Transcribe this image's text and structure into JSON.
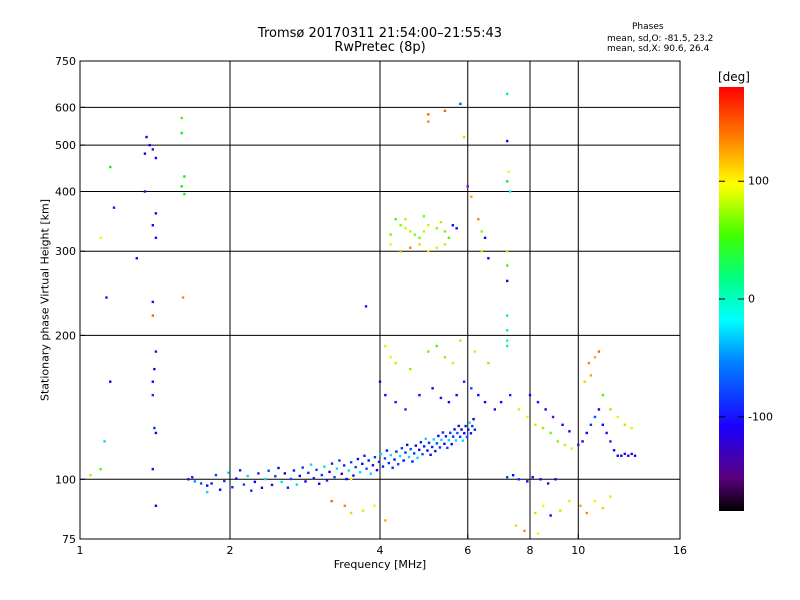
{
  "header": {
    "title_line1": "Tromsø 20170311 21:54:00–21:55:43",
    "title_line2": "RwPretec (8p)",
    "stats_heading": "Phases",
    "stats_o": "mean, sd,O: -81.5, 23.2",
    "stats_x": "mean, sd,X:  90.6, 26.4"
  },
  "colorbar": {
    "unit": "[deg]",
    "ticks": [
      {
        "value": 100,
        "label": "100"
      },
      {
        "value": 0,
        "label": "0"
      },
      {
        "value": -100,
        "label": "-100"
      }
    ],
    "range": [
      -180,
      180
    ]
  },
  "chart_data": {
    "type": "scatter",
    "xlabel": "Frequency [MHz]",
    "ylabel": "Stationary phase Virtual Height [km]",
    "xscale": "log",
    "yscale": "log",
    "xlim": [
      1,
      16
    ],
    "ylim": [
      75,
      750
    ],
    "xticks": [
      1,
      2,
      4,
      6,
      8,
      10,
      16
    ],
    "xtick_labels": [
      "1",
      "2",
      "4",
      "6",
      "8",
      "10",
      "16"
    ],
    "yticks": [
      75,
      100,
      200,
      300,
      400,
      500,
      600,
      750
    ],
    "ytick_labels": [
      "75",
      "100",
      "200",
      "300",
      "400",
      "500",
      "600",
      "750"
    ],
    "grid": true,
    "color_variable": "phase [deg]",
    "points": [
      [
        1.05,
        102,
        90
      ],
      [
        1.1,
        105,
        60
      ],
      [
        1.12,
        120,
        -40
      ],
      [
        1.15,
        160,
        -110
      ],
      [
        1.13,
        240,
        -120
      ],
      [
        1.17,
        370,
        -120
      ],
      [
        1.1,
        320,
        110
      ],
      [
        1.15,
        450,
        40
      ],
      [
        1.38,
        500,
        -110
      ],
      [
        1.4,
        490,
        -120
      ],
      [
        1.42,
        470,
        -100
      ],
      [
        1.35,
        400,
        -120
      ],
      [
        1.42,
        360,
        -110
      ],
      [
        1.4,
        340,
        -110
      ],
      [
        1.42,
        320,
        -120
      ],
      [
        1.3,
        290,
        -110
      ],
      [
        1.4,
        235,
        -120
      ],
      [
        1.4,
        220,
        150
      ],
      [
        1.42,
        185,
        -120
      ],
      [
        1.41,
        170,
        -110
      ],
      [
        1.4,
        160,
        -100
      ],
      [
        1.4,
        150,
        -130
      ],
      [
        1.41,
        128,
        -90
      ],
      [
        1.42,
        125,
        -110
      ],
      [
        1.4,
        105,
        -120
      ],
      [
        1.42,
        88,
        -110
      ],
      [
        1.35,
        480,
        -110
      ],
      [
        1.36,
        520,
        -110
      ],
      [
        1.6,
        570,
        60
      ],
      [
        1.6,
        530,
        40
      ],
      [
        1.62,
        430,
        40
      ],
      [
        1.6,
        410,
        30
      ],
      [
        1.62,
        395,
        20
      ],
      [
        1.61,
        240,
        140
      ],
      [
        1.7,
        99,
        -60
      ],
      [
        1.75,
        98,
        -80
      ],
      [
        1.8,
        97,
        -100
      ],
      [
        1.65,
        100,
        -120
      ],
      [
        1.68,
        101,
        -90
      ],
      [
        3.2,
        90,
        150
      ],
      [
        3.4,
        88,
        140
      ],
      [
        3.5,
        85,
        120
      ],
      [
        3.7,
        86,
        100
      ],
      [
        3.9,
        88,
        110
      ],
      [
        4.1,
        82,
        130
      ],
      [
        3.5,
        100,
        110
      ],
      [
        3.75,
        230,
        -120
      ],
      [
        4.3,
        350,
        60
      ],
      [
        4.4,
        340,
        80
      ],
      [
        4.5,
        335,
        100
      ],
      [
        4.6,
        330,
        90
      ],
      [
        4.7,
        325,
        80
      ],
      [
        4.8,
        320,
        70
      ],
      [
        4.9,
        330,
        90
      ],
      [
        5.0,
        340,
        100
      ],
      [
        5.2,
        335,
        80
      ],
      [
        5.3,
        345,
        90
      ],
      [
        5.4,
        330,
        70
      ],
      [
        5.5,
        320,
        60
      ],
      [
        5.6,
        340,
        -100
      ],
      [
        5.7,
        335,
        -110
      ],
      [
        4.2,
        310,
        110
      ],
      [
        4.4,
        300,
        130
      ],
      [
        4.6,
        305,
        140
      ],
      [
        4.8,
        310,
        120
      ],
      [
        5.0,
        300,
        110
      ],
      [
        5.2,
        305,
        100
      ],
      [
        5.4,
        310,
        90
      ],
      [
        4.2,
        325,
        70
      ],
      [
        4.5,
        350,
        90
      ],
      [
        4.9,
        355,
        70
      ],
      [
        5.0,
        580,
        150
      ],
      [
        5.0,
        560,
        140
      ],
      [
        5.4,
        590,
        150
      ],
      [
        5.8,
        610,
        -80
      ],
      [
        5.9,
        520,
        120
      ],
      [
        6.0,
        410,
        -140
      ],
      [
        6.1,
        390,
        130
      ],
      [
        6.3,
        350,
        140
      ],
      [
        6.4,
        330,
        80
      ],
      [
        6.5,
        320,
        -110
      ],
      [
        6.4,
        300,
        90
      ],
      [
        6.6,
        290,
        -110
      ],
      [
        7.2,
        640,
        0
      ],
      [
        7.2,
        510,
        -100
      ],
      [
        7.25,
        440,
        110
      ],
      [
        7.2,
        420,
        30
      ],
      [
        7.3,
        400,
        -30
      ],
      [
        7.2,
        300,
        90
      ],
      [
        7.2,
        280,
        60
      ],
      [
        7.2,
        260,
        -110
      ],
      [
        7.2,
        220,
        -20
      ],
      [
        7.2,
        205,
        -20
      ],
      [
        7.2,
        195,
        -30
      ],
      [
        7.2,
        190,
        -10
      ],
      [
        4.1,
        190,
        100
      ],
      [
        4.2,
        180,
        110
      ],
      [
        4.3,
        175,
        90
      ],
      [
        4.6,
        170,
        80
      ],
      [
        5.0,
        185,
        70
      ],
      [
        5.2,
        190,
        60
      ],
      [
        5.4,
        180,
        80
      ],
      [
        5.6,
        175,
        100
      ],
      [
        5.8,
        195,
        120
      ],
      [
        6.2,
        185,
        100
      ],
      [
        6.6,
        175,
        80
      ],
      [
        4.0,
        160,
        -110
      ],
      [
        4.1,
        150,
        -100
      ],
      [
        4.3,
        145,
        -120
      ],
      [
        4.5,
        140,
        -90
      ],
      [
        4.8,
        150,
        -110
      ],
      [
        5.1,
        155,
        -100
      ],
      [
        5.3,
        148,
        -120
      ],
      [
        5.5,
        145,
        -110
      ],
      [
        5.7,
        150,
        -100
      ],
      [
        5.9,
        160,
        -90
      ],
      [
        6.1,
        155,
        -80
      ],
      [
        6.3,
        150,
        -100
      ],
      [
        6.5,
        145,
        -110
      ],
      [
        6.8,
        140,
        -120
      ],
      [
        7.0,
        145,
        -100
      ],
      [
        7.3,
        150,
        -90
      ],
      [
        7.6,
        140,
        100
      ],
      [
        7.9,
        135,
        110
      ],
      [
        8.2,
        130,
        90
      ],
      [
        8.5,
        128,
        80
      ],
      [
        8.8,
        125,
        70
      ],
      [
        9.1,
        120,
        80
      ],
      [
        9.4,
        118,
        90
      ],
      [
        9.7,
        116,
        100
      ],
      [
        10.0,
        118,
        -120
      ],
      [
        10.2,
        120,
        -110
      ],
      [
        10.4,
        125,
        -100
      ],
      [
        10.6,
        130,
        -90
      ],
      [
        10.8,
        135,
        -80
      ],
      [
        11.0,
        140,
        -110
      ],
      [
        11.2,
        130,
        -100
      ],
      [
        11.4,
        125,
        -120
      ],
      [
        11.6,
        120,
        -130
      ],
      [
        11.8,
        115,
        -110
      ],
      [
        12.0,
        112,
        -100
      ],
      [
        12.2,
        112,
        -110
      ],
      [
        12.4,
        113,
        -120
      ],
      [
        12.6,
        112,
        -110
      ],
      [
        12.8,
        113,
        -100
      ],
      [
        13.0,
        112,
        -110
      ],
      [
        10.5,
        175,
        140
      ],
      [
        10.8,
        180,
        130
      ],
      [
        11.0,
        185,
        150
      ],
      [
        10.3,
        160,
        120
      ],
      [
        10.6,
        165,
        130
      ],
      [
        11.2,
        150,
        60
      ],
      [
        11.6,
        140,
        80
      ],
      [
        12.0,
        135,
        110
      ],
      [
        12.4,
        130,
        120
      ],
      [
        12.8,
        128,
        100
      ],
      [
        9.0,
        100,
        -110
      ],
      [
        8.7,
        98,
        -120
      ],
      [
        8.4,
        100,
        -110
      ],
      [
        8.1,
        101,
        -100
      ],
      [
        7.9,
        99,
        -110
      ],
      [
        7.6,
        100,
        -90
      ],
      [
        7.4,
        102,
        -100
      ],
      [
        7.2,
        101,
        -80
      ],
      [
        8.2,
        85,
        90
      ],
      [
        8.5,
        88,
        110
      ],
      [
        8.8,
        84,
        -100
      ],
      [
        9.2,
        86,
        120
      ],
      [
        9.6,
        90,
        100
      ],
      [
        10.1,
        88,
        130
      ],
      [
        10.4,
        85,
        140
      ],
      [
        10.8,
        90,
        110
      ],
      [
        11.2,
        87,
        120
      ],
      [
        11.6,
        92,
        100
      ],
      [
        7.5,
        80,
        120
      ],
      [
        7.8,
        78,
        140
      ],
      [
        8.3,
        77,
        110
      ],
      [
        8.0,
        150,
        -110
      ],
      [
        8.3,
        145,
        -120
      ],
      [
        8.6,
        140,
        -100
      ],
      [
        8.9,
        135,
        -130
      ],
      [
        9.3,
        130,
        -110
      ],
      [
        9.6,
        126,
        -100
      ]
    ]
  }
}
